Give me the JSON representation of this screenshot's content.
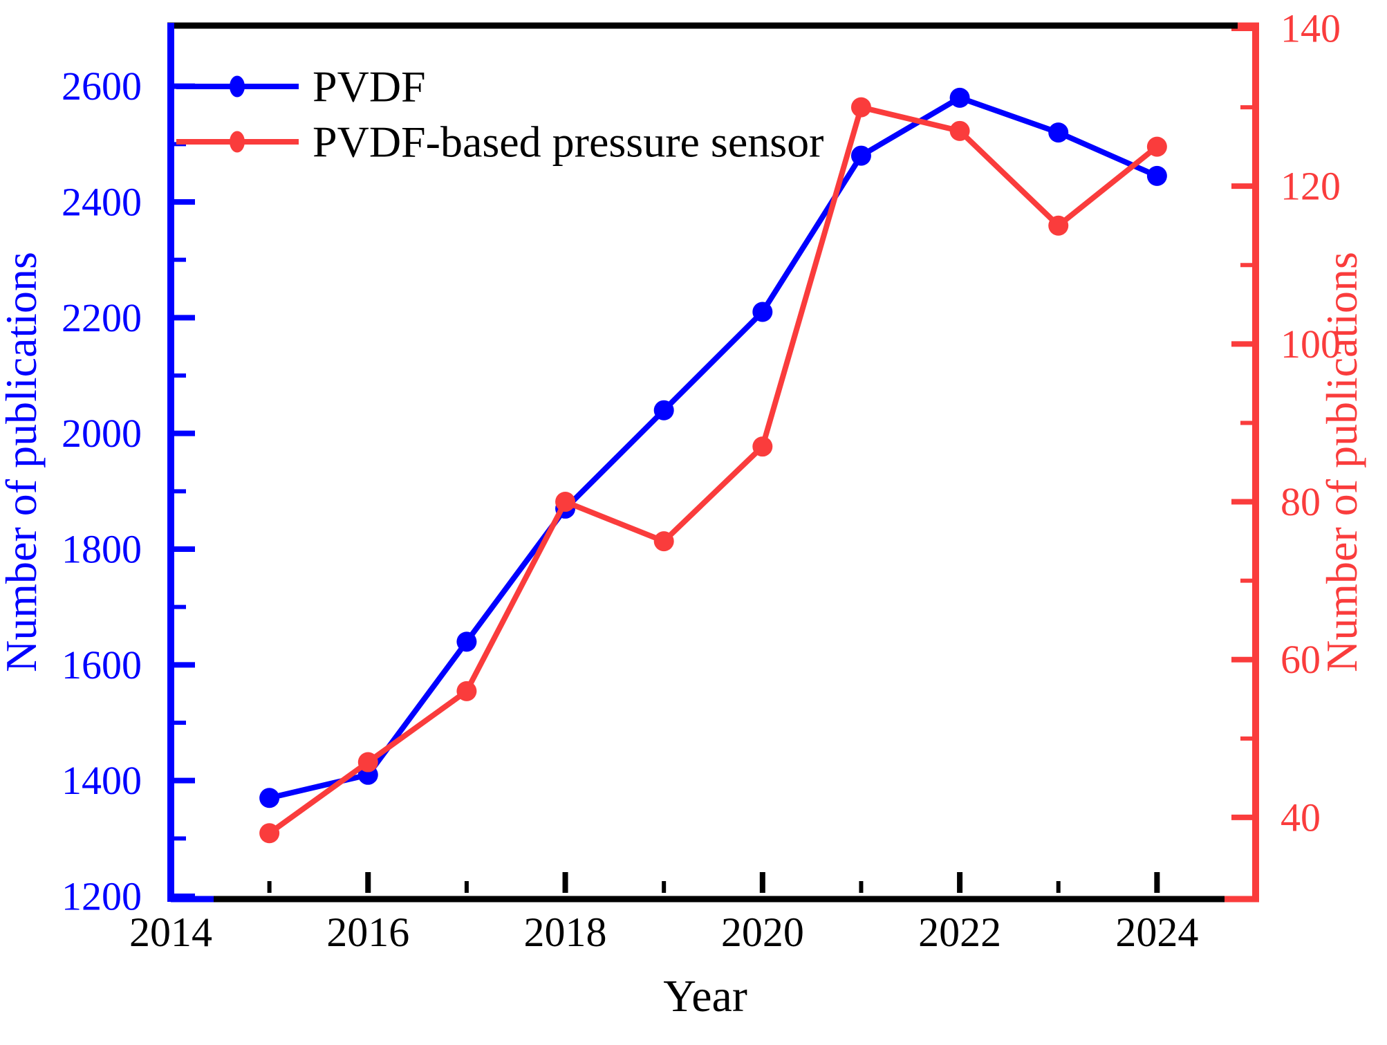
{
  "chart_data": {
    "type": "line",
    "title": "",
    "background": "#FFFFFF",
    "grid": false,
    "x": [
      2015,
      2016,
      2017,
      2018,
      2019,
      2020,
      2021,
      2022,
      2023,
      2024
    ],
    "series": [
      {
        "name": "PVDF",
        "axis": "left",
        "color": "#0000FF",
        "marker": "circle",
        "values": [
          1370,
          1410,
          1640,
          1870,
          2040,
          2210,
          2480,
          2580,
          2520,
          2445
        ]
      },
      {
        "name": "PVDF-based pressure sensor",
        "axis": "right",
        "color": "#FA3C3C",
        "marker": "circle",
        "values": [
          38,
          47,
          56,
          80,
          75,
          87,
          130,
          127,
          115,
          125
        ]
      }
    ],
    "xlabel": "Year",
    "x_axis": {
      "min": 2014,
      "max": 2025,
      "color": "#000000",
      "major_ticks": [
        2014,
        2016,
        2018,
        2020,
        2022,
        2024
      ],
      "minor_ticks": [
        2015,
        2017,
        2019,
        2021,
        2023
      ]
    },
    "left_axis": {
      "label": "Number of publications",
      "color": "#0000FF",
      "min": 1200,
      "max": 2700,
      "major_ticks": [
        1200,
        1400,
        1600,
        1800,
        2000,
        2200,
        2400,
        2600
      ],
      "minor_ticks": [
        1300,
        1500,
        1700,
        1900,
        2100,
        2300,
        2500
      ]
    },
    "right_axis": {
      "label": "Number of publications",
      "color": "#FA3C3C",
      "min": 30,
      "max": 140,
      "major_ticks": [
        40,
        60,
        80,
        100,
        120,
        140
      ],
      "minor_ticks": [
        50,
        70,
        90,
        110,
        130
      ]
    },
    "legend": {
      "position": "top-left",
      "items": [
        "PVDF",
        "PVDF-based pressure sensor"
      ]
    }
  }
}
